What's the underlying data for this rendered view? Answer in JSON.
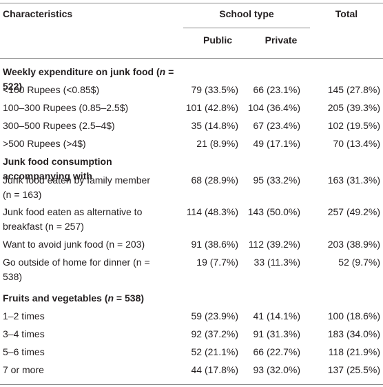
{
  "header": {
    "characteristics": "Characteristics",
    "school_type": "School type",
    "total": "Total",
    "public": "Public",
    "private": "Private"
  },
  "sections": [
    {
      "title": "Weekly expenditure on junk food (n = 522)",
      "title_prefix": "Weekly expenditure on junk food (",
      "title_n": "n",
      "title_suffix": " = 522)",
      "rows": [
        {
          "label": "<100 Rupees (<0.85$)",
          "public": "79 (33.5%)",
          "private": "66 (23.1%)",
          "total": "145 (27.8%)"
        },
        {
          "label": "100–300 Rupees (0.85–2.5$)",
          "public": "101 (42.8%)",
          "private": "104 (36.4%)",
          "total": "205 (39.3%)"
        },
        {
          "label": "300–500 Rupees (2.5–4$)",
          "public": "35 (14.8%)",
          "private": "67 (23.4%)",
          "total": "102 (19.5%)"
        },
        {
          "label": ">500 Rupees (>4$)",
          "public": "21 (8.9%)",
          "private": "49 (17.1%)",
          "total": "70 (13.4%)"
        }
      ]
    },
    {
      "title": "Junk food consumption accompanying with",
      "rows": [
        {
          "label_a": "Junk food eaten by family member",
          "label_b": "(n = 163)",
          "public": "68 (28.9%)",
          "private": "95 (33.2%)",
          "total": "163 (31.3%)"
        },
        {
          "label_a": "Junk food eaten as alternative to",
          "label_b": "breakfast (n = 257)",
          "public": "114 (48.3%)",
          "private": "143 (50.0%)",
          "total": "257 (49.2%)"
        },
        {
          "label": "Want to avoid junk food (n = 203)",
          "public": "91 (38.6%)",
          "private": "112 (39.2%)",
          "total": "203 (38.9%)"
        },
        {
          "label_a": "Go outside of home for dinner (n =",
          "label_b": "538)",
          "public": "19 (7.7%)",
          "private": "33 (11.3%)",
          "total": "52 (9.7%)"
        }
      ]
    },
    {
      "title": "Fruits and vegetables (n = 538)",
      "title_prefix": "Fruits and vegetables (",
      "title_n": "n",
      "title_suffix": " = 538)",
      "rows": [
        {
          "label": "1–2 times",
          "public": "59 (23.9%)",
          "private": "41 (14.1%)",
          "total": "100 (18.6%)"
        },
        {
          "label": "3–4 times",
          "public": "92 (37.2%)",
          "private": "91 (31.3%)",
          "total": "183 (34.0%)"
        },
        {
          "label": "5–6 times",
          "public": "52 (21.1%)",
          "private": "66 (22.7%)",
          "total": "118 (21.9%)"
        },
        {
          "label": "7 or more",
          "public": "44 (17.8%)",
          "private": "93 (32.0%)",
          "total": "137 (25.5%)"
        }
      ]
    }
  ]
}
